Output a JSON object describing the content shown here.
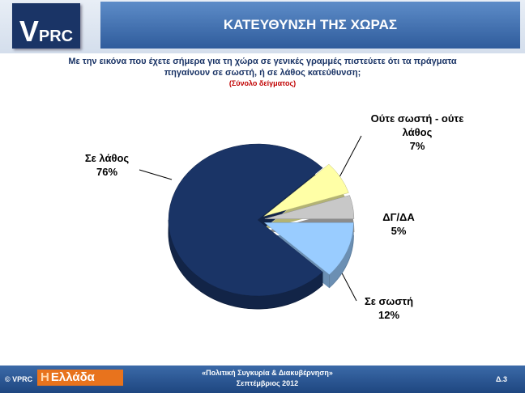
{
  "header": {
    "logo": "VPRC",
    "title": "ΚΑΤΕΥΘΥΝΣΗ ΤΗΣ ΧΩΡΑΣ"
  },
  "chart_data": {
    "type": "pie",
    "question": "Με την εικόνα που έχετε σήμερα για τη χώρα σε γενικές γραμμές πιστεύετε ότι τα πράγματα πηγαίνουν σε σωστή, ή σε λάθος κατεύθυνση;",
    "subtitle": "(Σύνολο δείγματος)",
    "categories": [
      "Σε σωστή",
      "Σε λάθος",
      "Ούτε σωστή - ούτε λάθος",
      "ΔΓ/ΔΑ"
    ],
    "values": [
      12,
      76,
      7,
      5
    ],
    "value_labels": [
      "12%",
      "76%",
      "7%",
      "5%"
    ],
    "colors": [
      "#99ccff",
      "#1a3466",
      "#ffffa6",
      "#c8c8c8"
    ]
  },
  "footer": {
    "copyright": "© VPRC",
    "brand_prefix": "Η",
    "brand": "Ελλάδα",
    "project": "«Πολιτική Συγκυρία & Διακυβέρνηση»",
    "date": "Σεπτέμβριος 2012",
    "page": "Δ.3"
  }
}
